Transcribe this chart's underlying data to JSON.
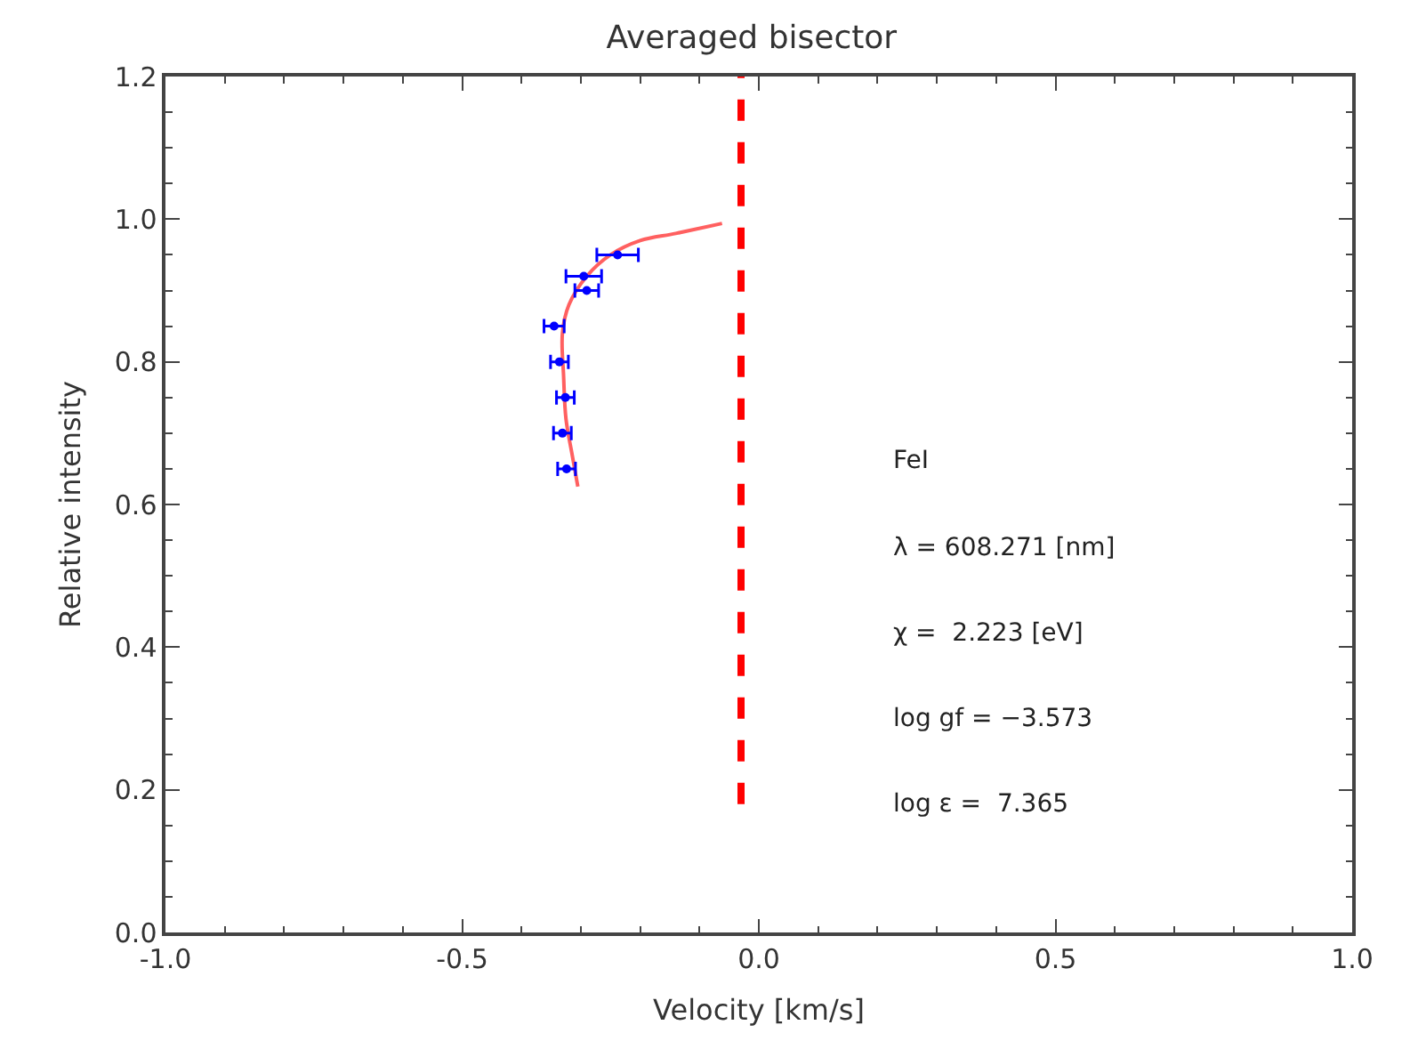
{
  "chart_data": {
    "type": "scatter",
    "title": "Averaged bisector",
    "xlabel": "Velocity [km/s]",
    "ylabel": "Relative intensity",
    "xlim": [
      -1.0,
      1.0
    ],
    "ylim": [
      0.0,
      1.2
    ],
    "xticks": [
      {
        "value": -1.0,
        "label": "-1.0"
      },
      -0.5,
      {
        "value": 0.0,
        "label": "0.0"
      },
      0.5,
      {
        "value": 1.0,
        "label": "1.0"
      }
    ],
    "yticks": [
      {
        "value": 0.0,
        "label": "0.0"
      },
      0.2,
      0.4,
      0.6,
      0.8,
      {
        "value": 1.0,
        "label": "1.0"
      },
      1.2
    ],
    "series": [
      {
        "type": "line",
        "color": "#ff6060",
        "x": [
          -0.305,
          -0.314,
          -0.325,
          -0.329,
          -0.331,
          -0.32,
          -0.29,
          -0.25,
          -0.2,
          -0.14,
          -0.062
        ],
        "values": [
          0.625,
          0.667,
          0.72,
          0.78,
          0.84,
          0.88,
          0.92,
          0.95,
          0.97,
          0.98,
          0.994
        ]
      },
      {
        "color": "#0000ff",
        "marker": "circle",
        "x": [
          -0.238,
          -0.295,
          -0.29,
          -0.345,
          -0.336,
          -0.326,
          -0.331,
          -0.324
        ],
        "values": [
          0.95,
          0.92,
          0.9,
          0.85,
          0.8,
          0.75,
          0.7,
          0.65
        ],
        "xerrors": [
          0.035,
          0.03,
          0.02,
          0.017,
          0.015,
          0.015,
          0.015,
          0.015
        ]
      },
      {
        "type": "line",
        "color": "#ff0000",
        "line_style": "dashed",
        "x": [
          -0.03,
          -0.03
        ],
        "values": [
          0.18,
          1.2
        ]
      }
    ],
    "annotations": [
      "FeI",
      "λ = 608.271 [nm]",
      "χ =  2.223 [eV]",
      "log gf = −3.573",
      "log ε =  7.365"
    ]
  }
}
